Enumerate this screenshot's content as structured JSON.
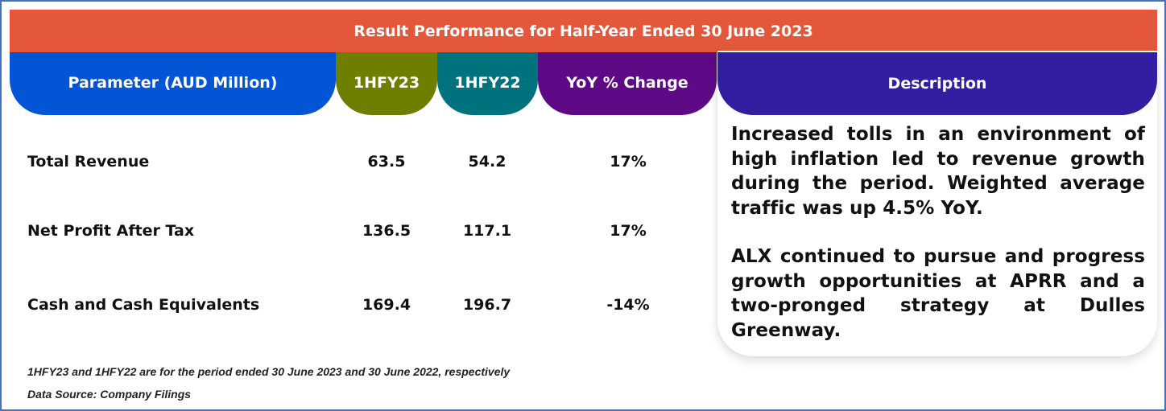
{
  "title": "Result Performance for Half-Year Ended 30 June 2023",
  "columns": {
    "parameter": "Parameter (AUD Million)",
    "current": "1HFY23",
    "previous": "1HFY22",
    "change": "YoY % Change",
    "description": "Description"
  },
  "rows": [
    {
      "label": "Total Revenue",
      "current": "63.5",
      "previous": "54.2",
      "change": "17%"
    },
    {
      "label": "Net Profit After Tax",
      "current": "136.5",
      "previous": "117.1",
      "change": "17%"
    },
    {
      "label": "Cash and Cash Equivalents",
      "current": "169.4",
      "previous": "196.7",
      "change": "-14%"
    }
  ],
  "description": {
    "paragraphs": [
      "Increased tolls in an environment of high inflation led to revenue growth during the period. Weighted average traffic was up 4.5% YoY.",
      "ALX continued to pursue and progress growth opportunities at APRR and a two-pronged strategy at Dulles Greenway."
    ]
  },
  "footnotes": [
    "1HFY23 and 1HFY22 are for the period ended 30 June 2023 and 30 June 2022, respectively",
    "Data Source: Company Filings"
  ],
  "colors": {
    "title_bar": "#e5573a",
    "parameter_header": "#0355d6",
    "current_header": "#6e7f00",
    "previous_header": "#00727e",
    "change_header": "#5e0a87",
    "description_header": "#311ea0",
    "frame_border": "#4472c4"
  }
}
